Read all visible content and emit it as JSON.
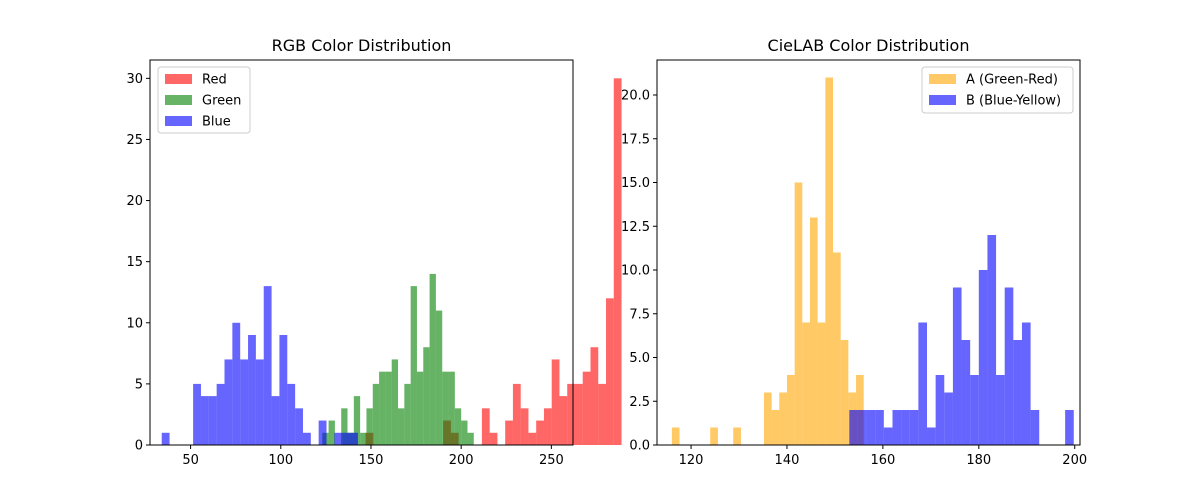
{
  "chart_data": [
    {
      "type": "bar",
      "title": "RGB Color Distribution",
      "xlabel": "",
      "ylabel": "",
      "xlim": [
        27.5,
        262
      ],
      "ylim": [
        0,
        31.5
      ],
      "xticks": [
        50,
        100,
        150,
        200,
        250
      ],
      "yticks": [
        0,
        5,
        10,
        15,
        20,
        25,
        30
      ],
      "legend_placement": "top-left",
      "grid": false,
      "series": [
        {
          "name": "Red",
          "color": "#ff0000",
          "opacity": 0.6,
          "bin_start": 147,
          "bin_width": 4.3,
          "counts": [
            1,
            0,
            0,
            0,
            0,
            0,
            0,
            0,
            0,
            0,
            2,
            1,
            0,
            0,
            0,
            3,
            1,
            0,
            2,
            5,
            3,
            1,
            2,
            3,
            7,
            4,
            5,
            5,
            6,
            8,
            5,
            12,
            30
          ]
        },
        {
          "name": "Green",
          "color": "#008000",
          "opacity": 0.6,
          "bin_start": 123,
          "bin_width": 3.5,
          "counts": [
            1,
            2,
            0,
            3,
            1,
            4,
            1,
            3,
            5,
            6,
            6,
            7,
            3,
            5,
            13,
            6,
            8,
            14,
            11,
            6,
            6,
            3,
            2,
            1,
            0,
            0
          ]
        },
        {
          "name": "Blue",
          "color": "#0000ff",
          "opacity": 0.6,
          "bin_start": 34,
          "bin_width": 4.35,
          "counts": [
            1,
            0,
            0,
            0,
            5,
            4,
            4,
            5,
            7,
            10,
            7,
            9,
            7,
            13,
            4,
            9,
            5,
            3,
            1,
            0,
            2,
            0,
            1,
            1,
            1,
            0,
            0,
            0,
            0,
            0,
            0,
            0,
            0,
            0,
            0,
            0,
            0,
            0,
            0,
            0,
            0
          ]
        }
      ]
    },
    {
      "type": "bar",
      "title": "CieLAB Color Distribution",
      "xlabel": "",
      "ylabel": "",
      "xlim": [
        112.9,
        201.1
      ],
      "ylim": [
        0,
        22
      ],
      "xticks": [
        120,
        140,
        160,
        180,
        200
      ],
      "yticks": [
        0.0,
        2.5,
        5.0,
        7.5,
        10.0,
        12.5,
        15.0,
        17.5,
        20.0
      ],
      "ytick_labels": [
        "0.0",
        "2.5",
        "5.0",
        "7.5",
        "10.0",
        "12.5",
        "15.0",
        "17.5",
        "20.0"
      ],
      "legend_placement": "top-right",
      "grid": false,
      "series": [
        {
          "name": "A (Green-Red)",
          "color": "#ffa500",
          "opacity": 0.6,
          "bin_start": 116,
          "bin_width": 1.6,
          "counts": [
            1,
            0,
            0,
            0,
            0,
            1,
            0,
            0,
            1,
            0,
            0,
            0,
            3,
            2,
            3,
            4,
            15,
            7,
            13,
            7,
            21,
            11,
            6,
            3,
            4,
            0,
            0
          ]
        },
        {
          "name": "B (Blue-Yellow)",
          "color": "#0000ff",
          "opacity": 0.6,
          "bin_start": 153,
          "bin_width": 1.8,
          "counts": [
            2,
            2,
            2,
            2,
            1,
            2,
            2,
            2,
            7,
            1,
            4,
            3,
            9,
            6,
            4,
            10,
            12,
            4,
            9,
            6,
            7,
            2,
            0,
            0,
            0,
            2
          ]
        }
      ]
    }
  ]
}
